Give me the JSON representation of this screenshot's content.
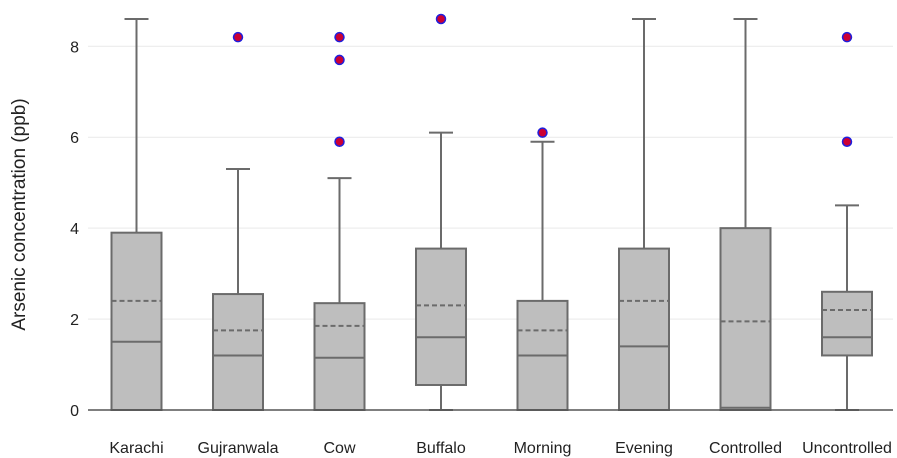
{
  "chart_data": {
    "type": "boxplot",
    "ylabel": "Arsenic concentration (ppb)",
    "ylim": [
      0,
      8.6
    ],
    "yticks": [
      0,
      2,
      4,
      6,
      8
    ],
    "grid": "horizontal",
    "colors": {
      "box_fill": "#bebebe",
      "box_stroke": "#6b6b6b",
      "mean_line": "#6b6b6b",
      "outlier_fill": "#cc0033",
      "outlier_stroke": "#1f1fdd"
    },
    "categories": [
      "Karachi",
      "Gujranwala",
      "Cow",
      "Buffalo",
      "Morning",
      "Evening",
      "Controlled",
      "Uncontrolled"
    ],
    "boxes": [
      {
        "category": "Karachi",
        "min": 0,
        "q1": 0,
        "median": 1.5,
        "mean": 2.4,
        "q3": 3.9,
        "max": 8.6,
        "outliers": []
      },
      {
        "category": "Gujranwala",
        "min": 0,
        "q1": 0,
        "median": 1.2,
        "mean": 1.75,
        "q3": 2.55,
        "max": 5.3,
        "outliers": [
          8.2
        ]
      },
      {
        "category": "Cow",
        "min": 0,
        "q1": 0,
        "median": 1.15,
        "mean": 1.85,
        "q3": 2.35,
        "max": 5.1,
        "outliers": [
          5.9,
          7.7,
          8.2
        ]
      },
      {
        "category": "Buffalo",
        "min": 0,
        "q1": 0.55,
        "median": 1.6,
        "mean": 2.3,
        "q3": 3.55,
        "max": 6.1,
        "outliers": [
          8.6
        ]
      },
      {
        "category": "Morning",
        "min": 0,
        "q1": 0,
        "median": 1.2,
        "mean": 1.75,
        "q3": 2.4,
        "max": 5.9,
        "outliers": [
          6.1
        ]
      },
      {
        "category": "Evening",
        "min": 0,
        "q1": 0,
        "median": 1.4,
        "mean": 2.4,
        "q3": 3.55,
        "max": 8.6,
        "outliers": []
      },
      {
        "category": "Controlled",
        "min": 0,
        "q1": 0,
        "median": 0.05,
        "mean": 1.95,
        "q3": 4.0,
        "max": 8.6,
        "outliers": []
      },
      {
        "category": "Uncontrolled",
        "min": 0,
        "q1": 1.2,
        "median": 1.6,
        "mean": 2.2,
        "q3": 2.6,
        "max": 4.5,
        "outliers": [
          5.9,
          8.2
        ]
      }
    ]
  }
}
